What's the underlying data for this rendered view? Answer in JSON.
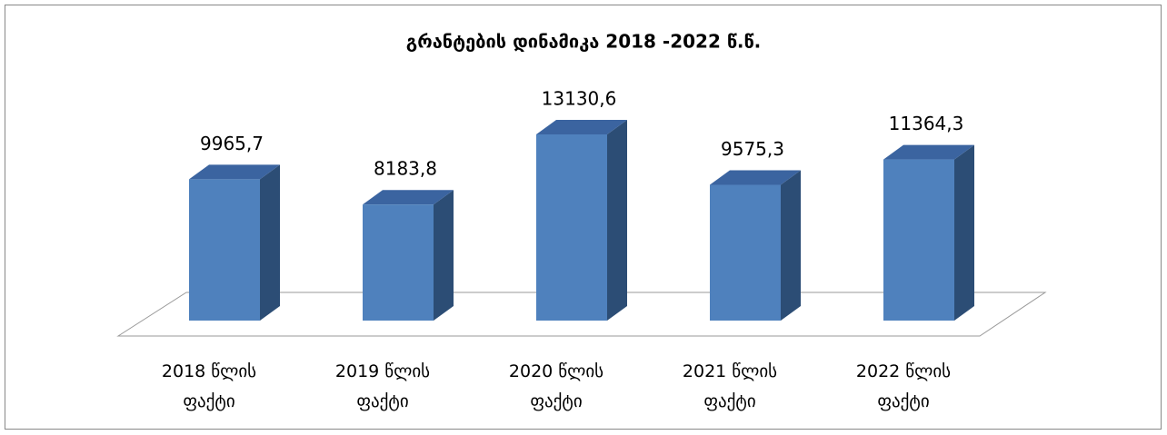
{
  "chart_data": {
    "type": "bar3d",
    "title": "გრანტების დინამიკა 2018 -2022 წ.წ.",
    "categories": [
      "2018 წლის ფაქტი",
      "2019 წლის ფაქტი",
      "2020 წლის ფაქტი",
      "2021 წლის ფაქტი",
      "2022 წლის ფაქტი"
    ],
    "values": [
      9965.7,
      8183.8,
      13130.6,
      9575.3,
      11364.3
    ],
    "value_labels": [
      "9965,7",
      "8183,8",
      "13130,6",
      "9575,3",
      "11364,3"
    ],
    "color": "#4f81bd"
  }
}
